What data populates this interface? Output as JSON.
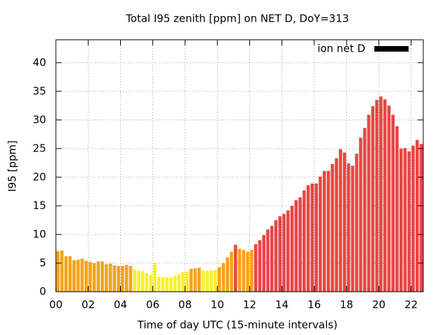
{
  "chart_data": {
    "type": "bar",
    "title": "Total I95 zenith [ppm] on NET D, DoY=313",
    "xlabel": "Time of day UTC (15-minute intervals)",
    "ylabel": "I95 [ppm]",
    "legend_position": "top-right",
    "grid": true,
    "xlim": [
      0,
      22.75
    ],
    "ylim": [
      0,
      44
    ],
    "yticks": [
      0,
      5,
      10,
      15,
      20,
      25,
      30,
      35,
      40
    ],
    "xticks": [
      {
        "value": 0,
        "label": "00"
      },
      {
        "value": 2,
        "label": "02"
      },
      {
        "value": 4,
        "label": "04"
      },
      {
        "value": 6,
        "label": "06"
      },
      {
        "value": 8,
        "label": "08"
      },
      {
        "value": 10,
        "label": "10"
      },
      {
        "value": 12,
        "label": "12"
      },
      {
        "value": 14,
        "label": "14"
      },
      {
        "value": 16,
        "label": "16"
      },
      {
        "value": 18,
        "label": "18"
      },
      {
        "value": 20,
        "label": "20"
      },
      {
        "value": 22,
        "label": "22"
      }
    ],
    "x": [
      0,
      0.25,
      0.5,
      0.75,
      1,
      1.25,
      1.5,
      1.75,
      2,
      2.25,
      2.5,
      2.75,
      3,
      3.25,
      3.5,
      3.75,
      4,
      4.25,
      4.5,
      4.75,
      5,
      5.25,
      5.5,
      5.75,
      6,
      6.25,
      6.5,
      6.75,
      7,
      7.25,
      7.5,
      7.75,
      8,
      8.25,
      8.5,
      8.75,
      9,
      9.25,
      9.5,
      9.75,
      10,
      10.25,
      10.5,
      10.75,
      11,
      11.25,
      11.5,
      11.75,
      12,
      12.25,
      12.5,
      12.75,
      13,
      13.25,
      13.5,
      13.75,
      14,
      14.25,
      14.5,
      14.75,
      15,
      15.25,
      15.5,
      15.75,
      16,
      16.25,
      16.5,
      16.75,
      17,
      17.25,
      17.5,
      17.75,
      18,
      18.25,
      18.5,
      18.75,
      19,
      19.25,
      19.5,
      19.75,
      20,
      20.25,
      20.5,
      20.75,
      21,
      21.25,
      21.5,
      21.75,
      22,
      22.25,
      22.5,
      22.75
    ],
    "series": [
      {
        "name": "ion net D",
        "color": "#000000",
        "values": [
          7.1,
          7.2,
          6.2,
          6.2,
          5.5,
          5.6,
          5.8,
          5.4,
          5.2,
          5.0,
          5.3,
          5.3,
          4.8,
          4.9,
          4.6,
          4.5,
          4.5,
          4.7,
          4.5,
          3.9,
          3.7,
          3.6,
          3.2,
          3.0,
          5.0,
          2.6,
          2.5,
          2.5,
          2.5,
          2.8,
          3.1,
          3.4,
          3.5,
          4.0,
          4.1,
          4.2,
          3.7,
          3.7,
          3.7,
          3.8,
          4.3,
          5.0,
          6.0,
          7.0,
          8.2,
          7.5,
          7.3,
          7.0,
          7.3,
          8.3,
          9.0,
          9.9,
          10.9,
          11.5,
          12.5,
          13.2,
          13.6,
          14.2,
          15.0,
          16.0,
          16.5,
          17.7,
          18.6,
          18.9,
          18.9,
          20.1,
          21.1,
          21.1,
          22.3,
          23.3,
          24.9,
          24.3,
          22.4,
          22.0,
          24.1,
          26.9,
          28.6,
          30.9,
          32.4,
          33.5,
          34.1,
          33.6,
          32.5,
          30.9,
          28.9,
          25.0,
          25.1,
          24.5,
          25.5,
          26.5,
          25.8,
          24.7
        ],
        "bar_colors": [
          "#f5a31a",
          "#f5a31a",
          "#f5a31a",
          "#f5a31a",
          "#f5a31a",
          "#f5a31a",
          "#f5a31a",
          "#f5a31a",
          "#f5a31a",
          "#f5a31a",
          "#f5a31a",
          "#f5a31a",
          "#f5a31a",
          "#f5a31a",
          "#f5a31a",
          "#f5a31a",
          "#f5a31a",
          "#f5a31a",
          "#f5a31a",
          "#f7f02a",
          "#f7f02a",
          "#f7f02a",
          "#f7f02a",
          "#f7f02a",
          "#f7f02a",
          "#f7f02a",
          "#f7f02a",
          "#f7f02a",
          "#f7f02a",
          "#f7f02a",
          "#f7f02a",
          "#f7f02a",
          "#f7f02a",
          "#f5a31a",
          "#f5a31a",
          "#f5a31a",
          "#f7f02a",
          "#f7f02a",
          "#f7f02a",
          "#f7f02a",
          "#f5a31a",
          "#f5a31a",
          "#f5a31a",
          "#f5a31a",
          "#e84646",
          "#f5a31a",
          "#f5a31a",
          "#f5a31a",
          "#f5a31a",
          "#e84646",
          "#e84646",
          "#e84646",
          "#e84646",
          "#e84646",
          "#e84646",
          "#e84646",
          "#e84646",
          "#e84646",
          "#e84646",
          "#e84646",
          "#e84646",
          "#e84646",
          "#e84646",
          "#e84646",
          "#e84646",
          "#e84646",
          "#e84646",
          "#e84646",
          "#e84646",
          "#e84646",
          "#e84646",
          "#e84646",
          "#e84646",
          "#e84646",
          "#e84646",
          "#e84646",
          "#e84646",
          "#e84646",
          "#e84646",
          "#e84646",
          "#e84646",
          "#e84646",
          "#e84646",
          "#e84646",
          "#e84646",
          "#e84646",
          "#e84646",
          "#e84646",
          "#e84646",
          "#e84646",
          "#e84646",
          "#e84646"
        ]
      }
    ]
  }
}
